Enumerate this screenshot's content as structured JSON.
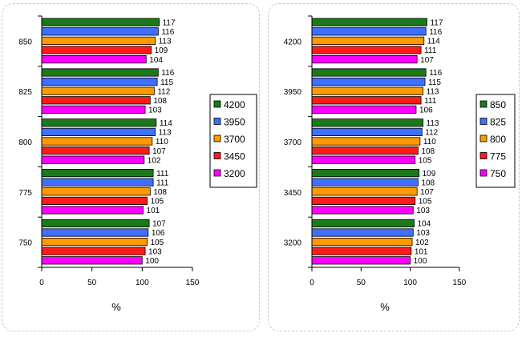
{
  "charts": [
    {
      "type": "bar",
      "orientation": "horizontal",
      "categories": [
        "850",
        "825",
        "800",
        "775",
        "750"
      ],
      "series": [
        {
          "name": "4200",
          "color": "#1a7a1a",
          "values": [
            117,
            116,
            114,
            111,
            107
          ]
        },
        {
          "name": "3950",
          "color": "#3f6fff",
          "values": [
            116,
            115,
            113,
            111,
            106
          ]
        },
        {
          "name": "3700",
          "color": "#ff9900",
          "values": [
            113,
            112,
            110,
            108,
            105
          ]
        },
        {
          "name": "3450",
          "color": "#ff1a1a",
          "values": [
            109,
            108,
            107,
            105,
            103
          ]
        },
        {
          "name": "3200",
          "color": "#ff00ff",
          "values": [
            104,
            103,
            102,
            101,
            100
          ]
        }
      ],
      "x_ticks": [
        0,
        50,
        100,
        150
      ],
      "xlim": [
        0,
        150
      ],
      "xlabel": "%",
      "legend_position": "right"
    },
    {
      "type": "bar",
      "orientation": "horizontal",
      "categories": [
        "4200",
        "3950",
        "3700",
        "3450",
        "3200"
      ],
      "series": [
        {
          "name": "850",
          "color": "#1a7a1a",
          "values": [
            117,
            116,
            113,
            109,
            104
          ]
        },
        {
          "name": "825",
          "color": "#3f6fff",
          "values": [
            116,
            115,
            112,
            108,
            103
          ]
        },
        {
          "name": "800",
          "color": "#ff9900",
          "values": [
            114,
            113,
            110,
            107,
            102
          ]
        },
        {
          "name": "775",
          "color": "#ff1a1a",
          "values": [
            111,
            111,
            108,
            105,
            101
          ]
        },
        {
          "name": "750",
          "color": "#ff00ff",
          "values": [
            107,
            106,
            105,
            103,
            100
          ]
        }
      ],
      "x_ticks": [
        0,
        50,
        100,
        150
      ],
      "xlim": [
        0,
        150
      ],
      "xlabel": "%",
      "legend_position": "right"
    }
  ]
}
